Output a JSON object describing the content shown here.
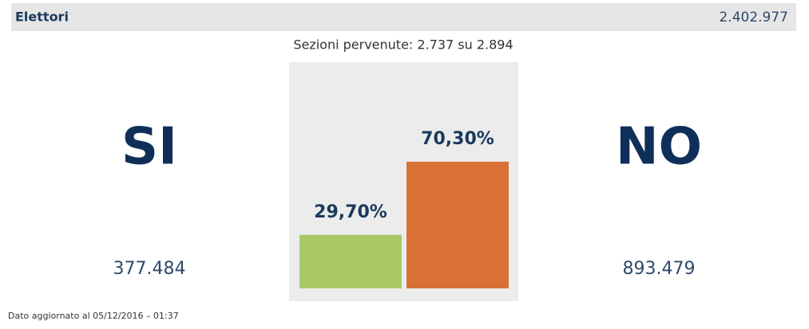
{
  "header": {
    "label": "Elettori",
    "value": "2.402.977"
  },
  "sections": "Sezioni pervenute: 2.737 su 2.894",
  "chart_data": {
    "type": "bar",
    "categories": [
      "SI",
      "NO"
    ],
    "values": [
      29.7,
      70.3
    ],
    "value_labels": [
      "29,70%",
      "70,30%"
    ],
    "colors": [
      "#a8c966",
      "#d97035"
    ]
  },
  "votes": [
    "377.484",
    "893.479"
  ],
  "footer": "Dato aggiornato al 05/12/2016 – 01:37"
}
